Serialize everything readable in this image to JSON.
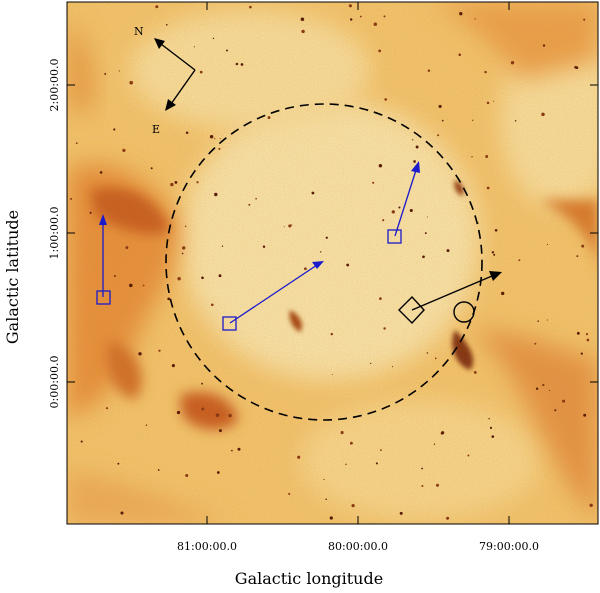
{
  "figure": {
    "xlabel": "Galactic longitude",
    "ylabel": "Galactic latitude",
    "x_ticks": [
      "81:00:00.0",
      "80:00:00.0",
      "79:00:00.0"
    ],
    "y_ticks": [
      "2:00:00.0",
      "1:00:00.0",
      "0:00:00.0"
    ],
    "compass": {
      "north": "N",
      "east": "E"
    },
    "colors": {
      "background_light": "#fbe6a8",
      "nebula_mid": "#f3a444",
      "nebula_dark": "#b94a12",
      "proper_motion_arrows": "#1a1acc",
      "markers_black": "#000000"
    }
  }
}
